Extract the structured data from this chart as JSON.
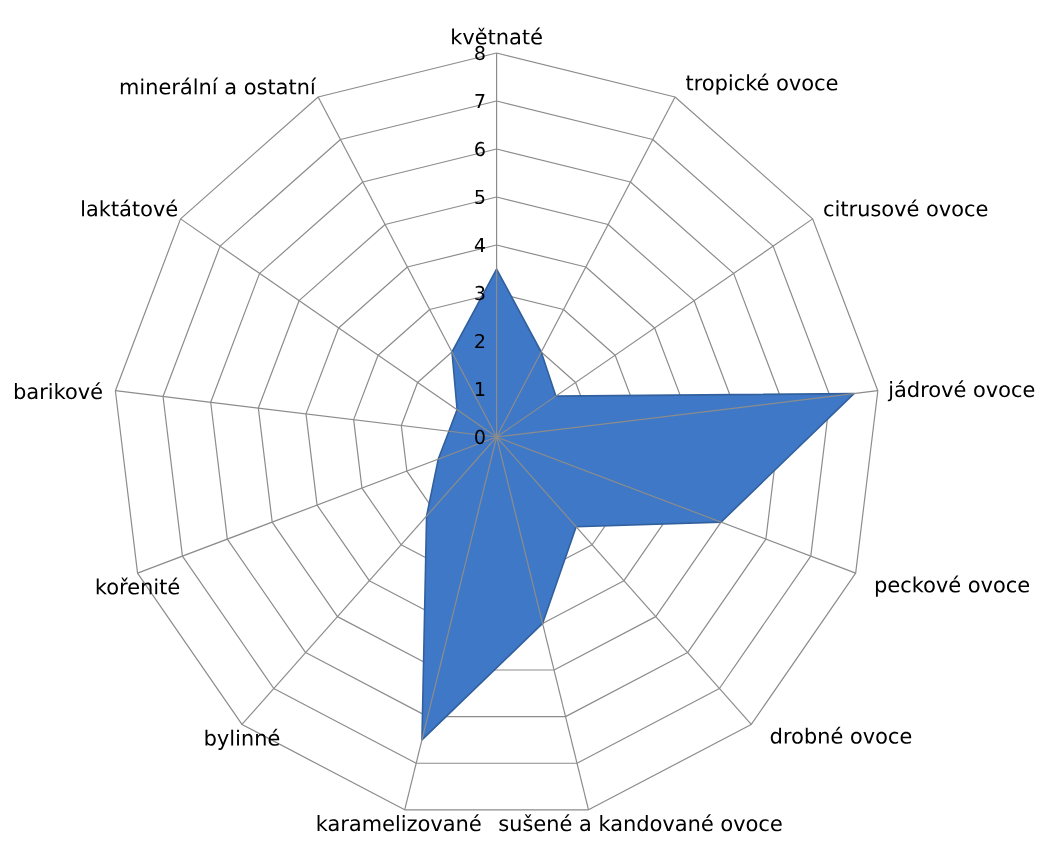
{
  "chart_data": {
    "type": "radar",
    "categories": [
      "květnaté",
      "tropické ovoce",
      "citrusové ovoce",
      "jádrové ovoce",
      "peckové ovoce",
      "drobné ovoce",
      "sušené a kandované ovoce",
      "karamelizované",
      "bylinné",
      "kořenité",
      "barikové",
      "laktátové",
      "minerální a ostatní"
    ],
    "series": [
      {
        "color": "#3f78c6",
        "values": [
          3.5,
          2,
          1.5,
          7.5,
          5,
          2.5,
          4,
          6.5,
          2.2,
          1.3,
          1,
          1,
          2
        ]
      }
    ],
    "ylim": [
      0,
      8
    ],
    "yticks": [
      0,
      1,
      2,
      3,
      4,
      5,
      6,
      7,
      8
    ],
    "grid": true
  }
}
